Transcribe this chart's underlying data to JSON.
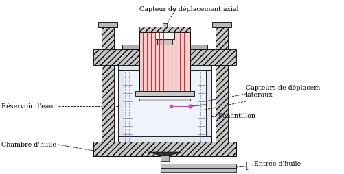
{
  "bg_color": "#ffffff",
  "line_color": "#000000",
  "gray_fill": "#c0c0c0",
  "red_fill": "#f5c0c0",
  "red_line": "#cc3333",
  "blue_line": "#8888cc",
  "magenta": "#cc44cc",
  "annotations": {
    "capteur_axial": "Capteur de déplacement axial",
    "capteur_lateral": "Capteurs de déplacem\nlatéraux",
    "reservoir": "Réservoir d'eau",
    "echantillon": "Echantillon",
    "chambre": "Chambre d'huile",
    "entree": "Entrée d'huile"
  },
  "font_size": 6.8
}
